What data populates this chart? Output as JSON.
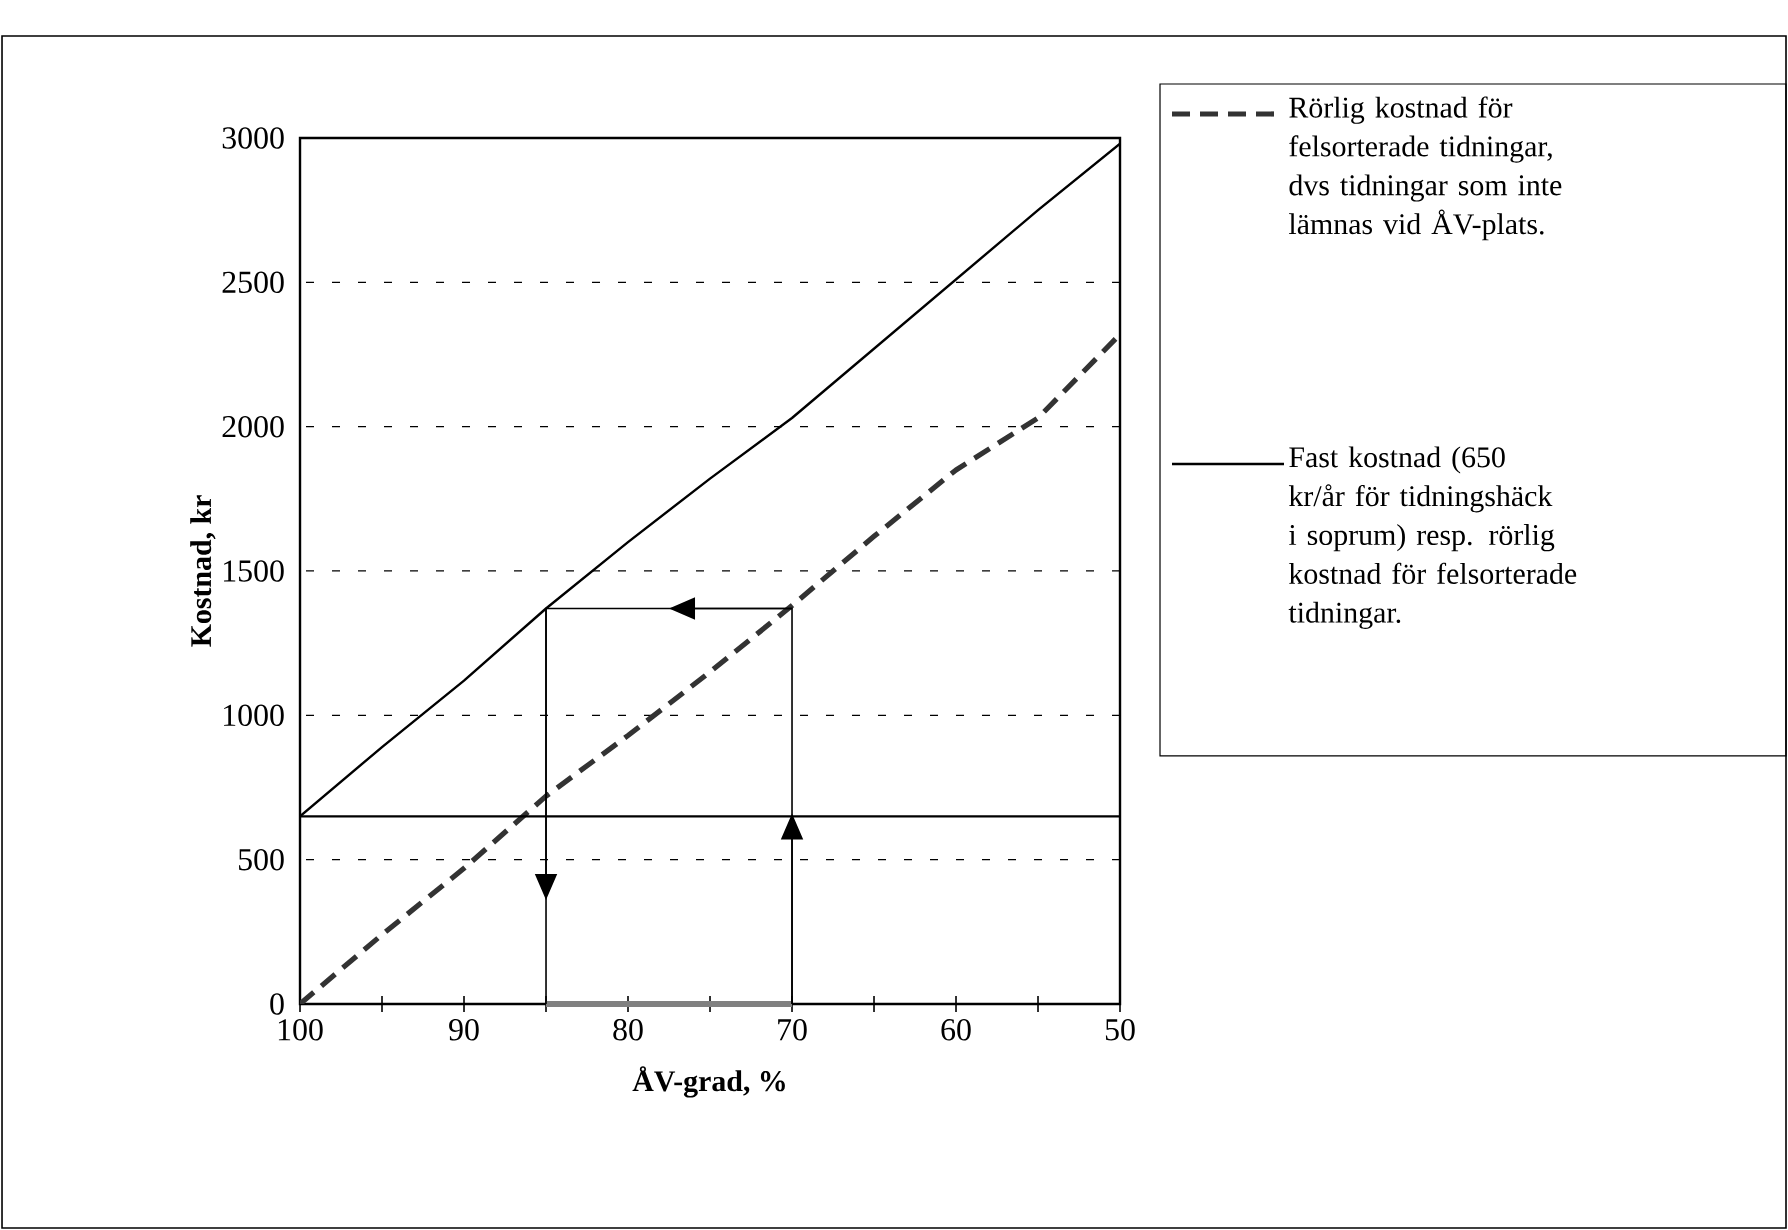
{
  "chart_data": {
    "type": "line",
    "xlabel": "ÅV-grad, %",
    "ylabel": "Kostnad, kr",
    "x": [
      100,
      95,
      90,
      85,
      80,
      75,
      70,
      65,
      60,
      55,
      50
    ],
    "series": [
      {
        "name": "Rörlig kostnad för felsorterade tidningar, dvs tidningar som inte lämnas vid ÅV-plats.",
        "color": "#333333",
        "line_style": "dashed",
        "values": [
          0,
          240,
          470,
          720,
          930,
          1150,
          1380,
          1620,
          1850,
          2030,
          2320
        ]
      },
      {
        "name": "Fast kostnad (650 kr/år för tidningshäck i soprum) resp. rörlig kostnad för felsorterade tidningar.",
        "color": "#000000",
        "line_style": "solid",
        "values": [
          650,
          890,
          1120,
          1370,
          1600,
          1820,
          2030,
          2270,
          2510,
          2750,
          2980
        ]
      }
    ],
    "ref_lines": [
      {
        "axis": "y",
        "value": 650,
        "color": "#000000"
      }
    ],
    "xlim": [
      100,
      50
    ],
    "ylim": [
      0,
      3000
    ],
    "xticks": [
      100,
      {
        "value": 95,
        "label": null
      },
      90,
      {
        "value": 85,
        "label": null
      },
      80,
      {
        "value": 75,
        "label": null
      },
      70,
      {
        "value": 65,
        "label": null
      },
      60,
      {
        "value": 55,
        "label": null
      },
      50
    ],
    "yticks": [
      0,
      500,
      1000,
      1500,
      2000,
      2500,
      3000
    ],
    "grid": "y",
    "legend": "right",
    "marker": "none"
  }
}
